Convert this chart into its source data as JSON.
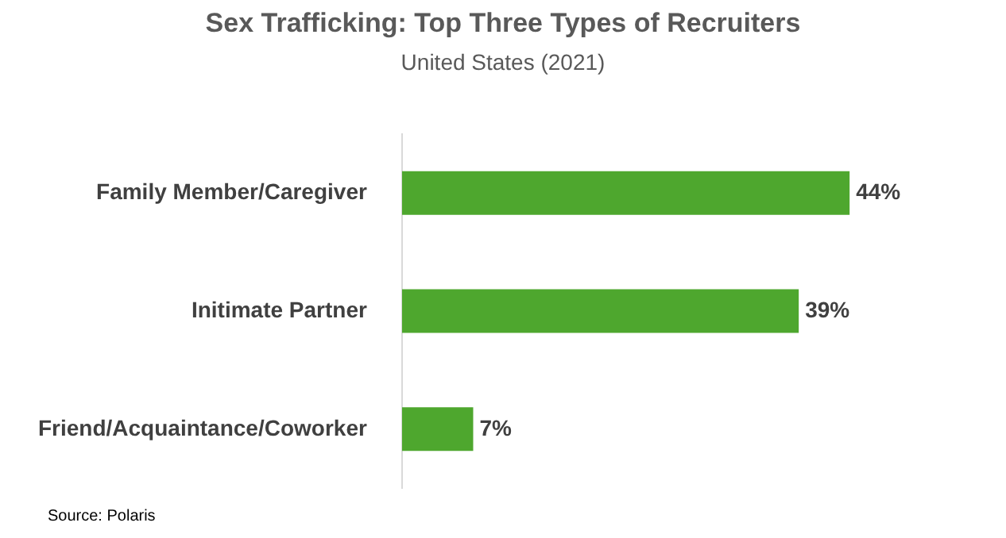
{
  "chart_data": {
    "type": "bar",
    "orientation": "horizontal",
    "title": "Sex Trafficking: Top Three Types of Recruiters",
    "subtitle": "United States (2021)",
    "categories": [
      "Family Member/Caregiver",
      "Initimate Partner",
      "Friend/Acquaintance/Coworker"
    ],
    "values": [
      44,
      39,
      7
    ],
    "value_labels": [
      "44%",
      "39%",
      "7%"
    ],
    "color": "#4ea72e",
    "annotations": [
      "Source: Polaris"
    ],
    "legend": false,
    "tick_labels": "y"
  }
}
